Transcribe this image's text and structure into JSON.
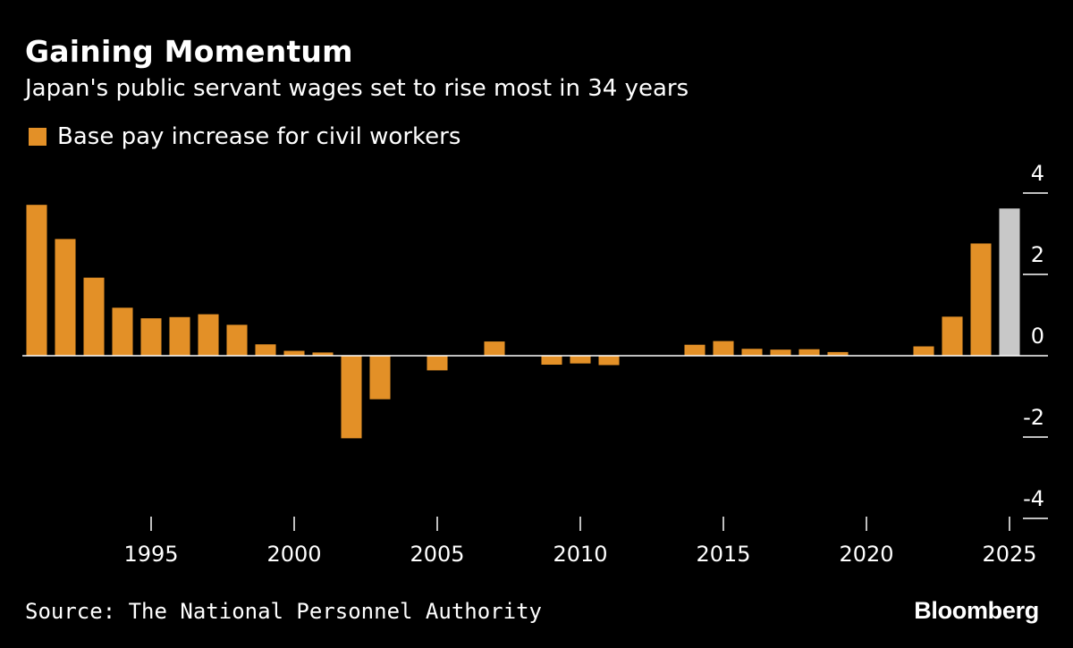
{
  "title": "Gaining Momentum",
  "subtitle": "Japan's public servant wages set to rise most in 34 years",
  "legend": {
    "label": "Base pay increase for civil workers"
  },
  "source": "Source: The National Personnel Authority",
  "brand": "Bloomberg",
  "colors": {
    "background": "#000000",
    "bar": "#e39027",
    "highlight": "#c8c8c8",
    "axis": "#ffffff"
  },
  "chart_data": {
    "type": "bar",
    "x": [
      1991,
      1992,
      1993,
      1994,
      1995,
      1996,
      1997,
      1998,
      1999,
      2000,
      2001,
      2002,
      2003,
      2004,
      2005,
      2006,
      2007,
      2008,
      2009,
      2010,
      2011,
      2012,
      2013,
      2014,
      2015,
      2016,
      2017,
      2018,
      2019,
      2020,
      2021,
      2022,
      2023,
      2024,
      2025
    ],
    "values": [
      3.71,
      2.87,
      1.92,
      1.18,
      0.92,
      0.95,
      1.02,
      0.76,
      0.28,
      0.12,
      0.08,
      -2.03,
      -1.07,
      0.0,
      -0.36,
      0.0,
      0.35,
      0.0,
      -0.22,
      -0.19,
      -0.23,
      0.0,
      0.0,
      0.27,
      0.36,
      0.17,
      0.15,
      0.16,
      0.09,
      0.0,
      0.0,
      0.23,
      0.96,
      2.76,
      3.62
    ],
    "highlight_index": 34,
    "ylim": [
      -4,
      4
    ],
    "yticks": [
      "4",
      "2",
      "0",
      "-2",
      "-4"
    ],
    "ytick_values": [
      4,
      2,
      0,
      -2,
      -4
    ],
    "xticks": [
      "1995",
      "2000",
      "2005",
      "2010",
      "2015",
      "2020",
      "2025"
    ],
    "xtick_values": [
      1995,
      2000,
      2005,
      2010,
      2015,
      2020,
      2025
    ],
    "legend_position": "top-left",
    "grid": false
  }
}
